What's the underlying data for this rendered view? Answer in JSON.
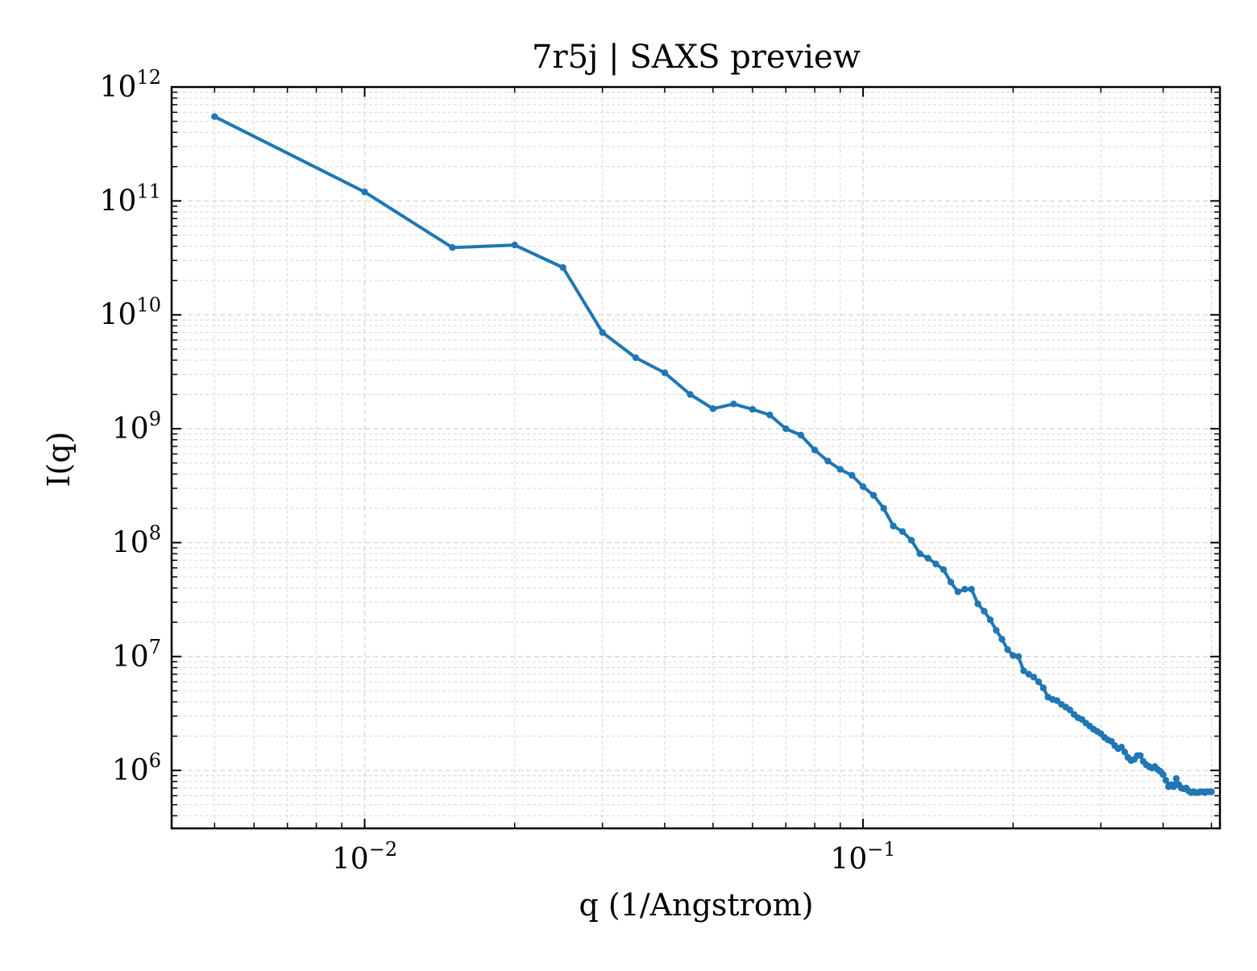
{
  "chart_data": {
    "type": "line",
    "title": "7r5j | SAXS preview",
    "xlabel": "q (1/Angstrom)",
    "ylabel": "I(q)",
    "xscale": "log",
    "yscale": "log",
    "xlim": [
      0.0041,
      0.52
    ],
    "ylim": [
      310000,
      1000000000000.0
    ],
    "grid": true,
    "legend": "none",
    "x_major_ticks": [
      {
        "value": 0.01,
        "base": "10",
        "exp": "−2"
      },
      {
        "value": 0.1,
        "base": "10",
        "exp": "−1"
      }
    ],
    "y_major_ticks": [
      {
        "value": 1000000.0,
        "base": "10",
        "exp": "6"
      },
      {
        "value": 10000000.0,
        "base": "10",
        "exp": "7"
      },
      {
        "value": 100000000.0,
        "base": "10",
        "exp": "8"
      },
      {
        "value": 1000000000.0,
        "base": "10",
        "exp": "9"
      },
      {
        "value": 10000000000.0,
        "base": "10",
        "exp": "10"
      },
      {
        "value": 100000000000.0,
        "base": "10",
        "exp": "11"
      },
      {
        "value": 1000000000000.0,
        "base": "10",
        "exp": "12"
      }
    ],
    "colors": {
      "series": "#1f77b4",
      "grid": "#d9d9d9",
      "axis": "#000000"
    },
    "series": [
      {
        "x": [
          0.005,
          0.01,
          0.015,
          0.02,
          0.025,
          0.03,
          0.035,
          0.04,
          0.045,
          0.05,
          0.055,
          0.06,
          0.065,
          0.07,
          0.075,
          0.08,
          0.085,
          0.09,
          0.095,
          0.1,
          0.105,
          0.11,
          0.115,
          0.12,
          0.125,
          0.13,
          0.135,
          0.14,
          0.145,
          0.15,
          0.155,
          0.16,
          0.165,
          0.17,
          0.175,
          0.18,
          0.185,
          0.19,
          0.195,
          0.2,
          0.205,
          0.21,
          0.215,
          0.22,
          0.225,
          0.23,
          0.235,
          0.24,
          0.245,
          0.25,
          0.255,
          0.26,
          0.265,
          0.27,
          0.275,
          0.28,
          0.285,
          0.29,
          0.295,
          0.3,
          0.305,
          0.31,
          0.315,
          0.32,
          0.325,
          0.33,
          0.335,
          0.34,
          0.345,
          0.35,
          0.355,
          0.36,
          0.365,
          0.37,
          0.375,
          0.38,
          0.385,
          0.39,
          0.395,
          0.4,
          0.405,
          0.41,
          0.415,
          0.42,
          0.425,
          0.43,
          0.435,
          0.44,
          0.445,
          0.45,
          0.455,
          0.46,
          0.465,
          0.47,
          0.475,
          0.48,
          0.485,
          0.49,
          0.495,
          0.5
        ],
        "y": [
          550000000000.0,
          120000000000.0,
          39000000000.0,
          41000000000.0,
          26000000000.0,
          7000000000.0,
          4200000000.0,
          3100000000.0,
          2000000000.0,
          1500000000.0,
          1650000000.0,
          1480000000.0,
          1320000000.0,
          1000000000.0,
          880000000.0,
          650000000.0,
          520000000.0,
          440000000.0,
          390000000.0,
          310000000.0,
          260000000.0,
          200000000.0,
          140000000.0,
          125000000.0,
          105000000.0,
          80000000.0,
          73000000.0,
          65000000.0,
          58000000.0,
          45000000.0,
          37000000.0,
          39000000.0,
          39000000.0,
          29000000.0,
          25000000.0,
          21000000.0,
          17000000.0,
          14200000.0,
          11500000.0,
          10200000.0,
          10000000.0,
          7500000.0,
          7000000.0,
          6600000.0,
          6000000.0,
          5300000.0,
          4400000.0,
          4200000.0,
          4100000.0,
          3800000.0,
          3600000.0,
          3400000.0,
          3100000.0,
          2900000.0,
          2800000.0,
          2600000.0,
          2450000.0,
          2300000.0,
          2200000.0,
          2100000.0,
          1950000.0,
          1850000.0,
          1800000.0,
          1650000.0,
          1550000.0,
          1600000.0,
          1450000.0,
          1300000.0,
          1220000.0,
          1250000.0,
          1350000.0,
          1350000.0,
          1200000.0,
          1120000.0,
          1080000.0,
          1050000.0,
          1080000.0,
          1020000.0,
          980000.0,
          920000.0,
          820000.0,
          720000.0,
          750000.0,
          720000.0,
          850000.0,
          750000.0,
          700000.0,
          690000.0,
          700000.0,
          660000.0,
          640000.0,
          650000.0,
          640000.0,
          640000.0,
          650000.0,
          650000.0,
          640000.0,
          650000.0,
          650000.0,
          650000.0
        ]
      }
    ]
  }
}
